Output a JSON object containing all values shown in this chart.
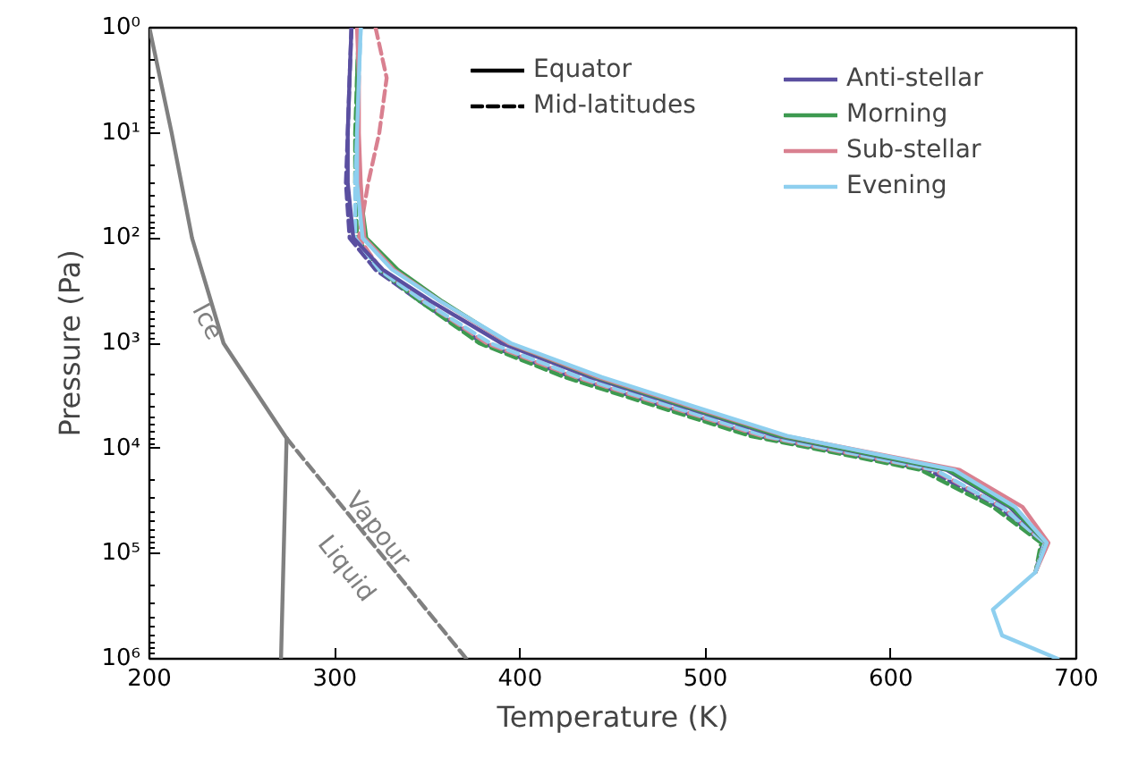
{
  "chart_data": {
    "type": "line",
    "xlabel": "Temperature (K)",
    "ylabel": "Pressure (Pa)",
    "xlim": [
      200,
      700
    ],
    "xticks": [
      200,
      300,
      400,
      500,
      600,
      700
    ],
    "ylim": [
      1000000,
      1
    ],
    "log": "y",
    "yticks": [
      {
        "value": 1,
        "label": "10⁰"
      },
      {
        "value": 10,
        "label": "10¹"
      },
      {
        "value": 100,
        "label": "10²"
      },
      {
        "value": 1000,
        "label": "10³"
      },
      {
        "value": 10000,
        "label": "10⁴"
      },
      {
        "value": 100000,
        "label": "10⁵"
      },
      {
        "value": 1000000,
        "label": "10⁶"
      }
    ],
    "grid": false,
    "legend": "top right",
    "series": [
      {
        "name": "Equator",
        "color": "#000000",
        "line_style": "solid"
      },
      {
        "name": "Mid-latitudes",
        "color": "#000000",
        "line_style": "dashed"
      },
      {
        "color": "#5a4fa0",
        "line_style": "dashed",
        "x": [
          309,
          308,
          307,
          306,
          308,
          322,
          346,
          380,
          428,
          478,
          528,
          620,
          658,
          682,
          678
        ],
        "values": [
          1,
          3,
          10,
          30,
          100,
          200,
          400,
          1000,
          2100,
          4000,
          7600,
          16000,
          36000,
          79000,
          150000
        ]
      },
      {
        "color": "#3d9a50",
        "line_style": "dashed",
        "x": [
          313,
          312,
          311,
          311,
          312,
          324,
          346,
          378,
          424,
          474,
          524,
          616,
          655,
          681,
          678
        ],
        "values": [
          1,
          3,
          10,
          30,
          100,
          200,
          400,
          1000,
          2100,
          4000,
          7600,
          16000,
          36000,
          79000,
          150000
        ]
      },
      {
        "color": "#d98090",
        "line_style": "dashed",
        "x": [
          322,
          328,
          324,
          318,
          313,
          325,
          348,
          382,
          430,
          480,
          530,
          623,
          660,
          683,
          678
        ],
        "values": [
          1,
          3,
          10,
          30,
          100,
          200,
          400,
          1000,
          2100,
          4000,
          7600,
          16000,
          36000,
          79000,
          150000
        ]
      },
      {
        "color": "#8ecfef",
        "line_style": "dashed",
        "x": [
          314,
          313,
          312,
          311,
          311,
          324,
          348,
          384,
          432,
          482,
          532,
          624,
          660,
          683,
          678
        ],
        "values": [
          1,
          3,
          10,
          30,
          100,
          200,
          400,
          1000,
          2100,
          4000,
          7600,
          16000,
          36000,
          79000,
          150000
        ]
      },
      {
        "name": "Anti-stellar",
        "color": "#5a4fa0",
        "line_style": "solid",
        "x": [
          309,
          308,
          307,
          307,
          310,
          326,
          352,
          390,
          438,
          488,
          538,
          630,
          664,
          684,
          678
        ],
        "values": [
          1,
          3,
          10,
          30,
          100,
          200,
          400,
          1000,
          2100,
          4000,
          7600,
          16000,
          36000,
          79000,
          150000
        ]
      },
      {
        "name": "Morning",
        "color": "#3d9a50",
        "line_style": "solid",
        "x": [
          313,
          312,
          312,
          313,
          317,
          334,
          358,
          394,
          441,
          490,
          540,
          631,
          665,
          684,
          678
        ],
        "values": [
          1,
          3,
          10,
          30,
          100,
          200,
          400,
          1000,
          2100,
          4000,
          7600,
          16000,
          36000,
          79000,
          150000
        ]
      },
      {
        "name": "Sub-stellar",
        "color": "#d98090",
        "line_style": "solid",
        "x": [
          312,
          313,
          313,
          314,
          316,
          332,
          357,
          394,
          442,
          492,
          543,
          637,
          671,
          685,
          678
        ],
        "values": [
          1,
          3,
          10,
          30,
          100,
          200,
          400,
          1000,
          2100,
          4000,
          7600,
          16000,
          36000,
          79000,
          150000
        ]
      },
      {
        "name": "Evening",
        "color": "#8ecfef",
        "line_style": "solid",
        "x": [
          314,
          313,
          312,
          312,
          315,
          331,
          357,
          395,
          444,
          494,
          544,
          634,
          667,
          684,
          678,
          655,
          660,
          690
        ],
        "values": [
          1,
          3,
          10,
          30,
          100,
          200,
          400,
          1000,
          2100,
          4000,
          7600,
          16000,
          36000,
          79000,
          150000,
          340000,
          600000,
          1000000
        ]
      },
      {
        "color": "#808080",
        "line_style": "solid",
        "x": [
          200,
          212,
          223,
          240,
          274
        ],
        "values": [
          1,
          10,
          100,
          1000,
          8000
        ]
      },
      {
        "color": "#808080",
        "line_style": "solid",
        "x": [
          274,
          271
        ],
        "values": [
          8000,
          1000000
        ]
      },
      {
        "color": "#808080",
        "line_style": "dashed",
        "x": [
          274,
          371
        ],
        "values": [
          8000,
          1000000
        ]
      }
    ],
    "annotations": [
      "Ice",
      "Vapour",
      "Liquid"
    ]
  }
}
